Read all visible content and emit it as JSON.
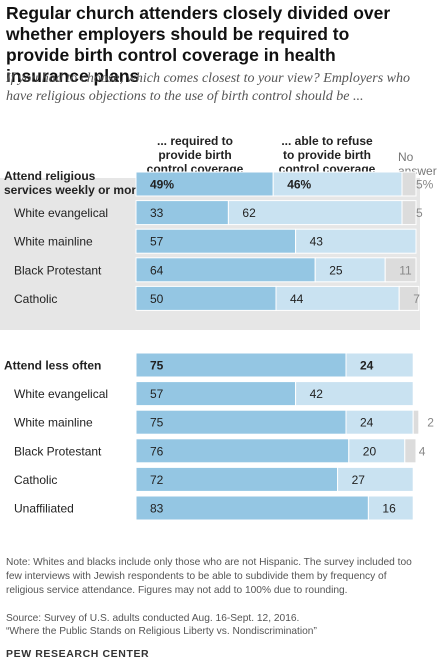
{
  "title": "Regular church attenders closely divided over whether employers should be required to provide birth control coverage in health insurance plans",
  "subtitle": "If you had to choose, which comes closest to your view? Employers who have religious objections to the use of birth control should be ...",
  "column_headers": {
    "required": [
      "... required to",
      "provide birth",
      "control coverage"
    ],
    "refuse": [
      "... able to refuse",
      "to provide birth",
      "control coverage"
    ],
    "no_answer": [
      "No",
      "answer"
    ]
  },
  "colors": {
    "required": "#94c6e3",
    "refuse": "#c9e2f1",
    "no_answer": "#dcdcdc",
    "band": "#e6e6e6"
  },
  "chart_data": {
    "type": "bar",
    "orientation": "horizontal",
    "stacked": true,
    "title": "Regular church attenders closely divided over whether employers should be required to provide birth control coverage in health insurance plans",
    "series": [
      {
        "name": "... required to provide birth control coverage",
        "key": "required"
      },
      {
        "name": "... able to refuse to provide birth control coverage",
        "key": "refuse"
      },
      {
        "name": "No answer",
        "key": "no_answer"
      }
    ],
    "groups": [
      {
        "rows": [
          {
            "label": "Attend religious\nservices weekly or more",
            "header": true,
            "required": 49,
            "required_label": "49%",
            "refuse": 46,
            "refuse_label": "46%",
            "no_answer": 5,
            "no_answer_label": "5%"
          },
          {
            "label": "White evangelical",
            "required": 33,
            "required_label": "33",
            "refuse": 62,
            "refuse_label": "62",
            "no_answer": 5,
            "no_answer_label": "5"
          },
          {
            "label": "White mainline",
            "required": 57,
            "required_label": "57",
            "refuse": 43,
            "refuse_label": "43",
            "no_answer": 0,
            "no_answer_label": ""
          },
          {
            "label": "Black Protestant",
            "required": 64,
            "required_label": "64",
            "refuse": 25,
            "refuse_label": "25",
            "no_answer": 11,
            "no_answer_label": "11"
          },
          {
            "label": "Catholic",
            "required": 50,
            "required_label": "50",
            "refuse": 44,
            "refuse_label": "44",
            "no_answer": 7,
            "no_answer_label": "7"
          }
        ]
      },
      {
        "rows": [
          {
            "label": "Attend less often",
            "header": true,
            "required": 75,
            "required_label": "75",
            "refuse": 24,
            "refuse_label": "24",
            "no_answer": 0,
            "no_answer_label": ""
          },
          {
            "label": "White evangelical",
            "required": 57,
            "required_label": "57",
            "refuse": 42,
            "refuse_label": "42",
            "no_answer": 0,
            "no_answer_label": ""
          },
          {
            "label": "White mainline",
            "required": 75,
            "required_label": "75",
            "refuse": 24,
            "refuse_label": "24",
            "no_answer": 2,
            "no_answer_label": "2"
          },
          {
            "label": "Black Protestant",
            "required": 76,
            "required_label": "76",
            "refuse": 20,
            "refuse_label": "20",
            "no_answer": 4,
            "no_answer_label": "4"
          },
          {
            "label": "Catholic",
            "required": 72,
            "required_label": "72",
            "refuse": 27,
            "refuse_label": "27",
            "no_answer": 0,
            "no_answer_label": ""
          },
          {
            "label": "Unaffiliated",
            "required": 83,
            "required_label": "83",
            "refuse": 16,
            "refuse_label": "16",
            "no_answer": 0,
            "no_answer_label": ""
          }
        ]
      }
    ],
    "xlim": [
      0,
      100
    ],
    "grid": false,
    "legend": "column headers"
  },
  "note": "Note: Whites and blacks include only those who are not Hispanic. The survey included too few interviews with Jewish respondents to be able to subdivide them by frequency of religious service attendance. Figures may not add to 100% due to rounding.",
  "source": "Source: Survey of U.S. adults conducted Aug. 16-Sept. 12, 2016.",
  "report": "“Where the Public Stands on Religious Liberty vs. Nondiscrimination”",
  "branding": "PEW RESEARCH CENTER"
}
